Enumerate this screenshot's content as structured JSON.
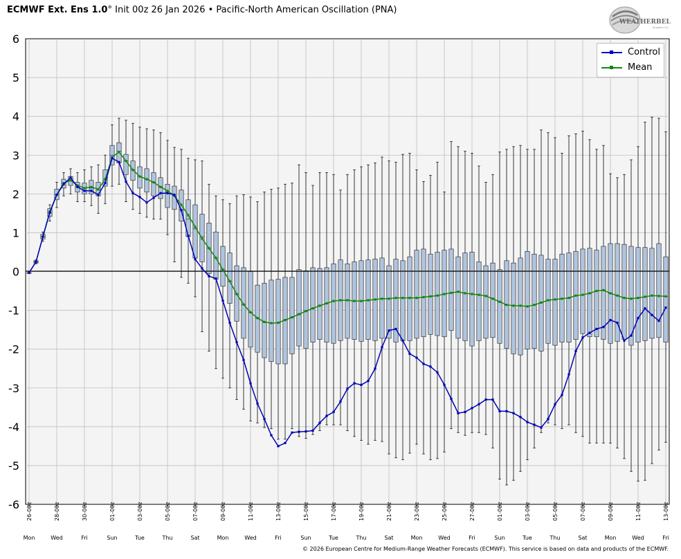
{
  "header": {
    "model": "ECMWF Ext.  Ens 1.0",
    "degree_symbol": "°",
    "init": " Init 00z 26 Jan 2026",
    "separator": " • ",
    "index_name": "Pacific-North American Oscillation (PNA)"
  },
  "logo": {
    "text": "WEATHERBELL",
    "subtext": "Analytics LLC"
  },
  "copyright": "© 2026 European Centre for Medium-Range Weather Forecasts (ECMWF). This service is based on data and products of the ECMWF.",
  "colors": {
    "control": "#0000bb",
    "mean": "#118811",
    "box_fill": "#b0c4de",
    "plot_bg": "#f4f4f4",
    "grid": "#bfbfbf"
  },
  "legend": {
    "control_label": "Control",
    "mean_label": "Mean",
    "position": "top-right"
  },
  "chart_data": {
    "type": "box-line",
    "title": "Pacific-North American Oscillation (PNA)",
    "ylim": [
      -6,
      6
    ],
    "y_ticks": [
      6,
      5,
      4,
      3,
      2,
      1,
      0,
      -1,
      -2,
      -3,
      -4,
      -5,
      -6
    ],
    "x_step_hours": 12,
    "n_steps": 93,
    "date_labels": [
      {
        "step": 0,
        "date": "26-00z",
        "day": "Mon"
      },
      {
        "step": 4,
        "date": "28-00z",
        "day": "Wed"
      },
      {
        "step": 8,
        "date": "30-00z",
        "day": "Fri"
      },
      {
        "step": 12,
        "date": "01-00z",
        "day": "Sun"
      },
      {
        "step": 16,
        "date": "03-00z",
        "day": "Tue"
      },
      {
        "step": 20,
        "date": "05-00z",
        "day": "Thu"
      },
      {
        "step": 24,
        "date": "07-00z",
        "day": "Sat"
      },
      {
        "step": 28,
        "date": "09-00z",
        "day": "Mon"
      },
      {
        "step": 32,
        "date": "11-00z",
        "day": "Wed"
      },
      {
        "step": 36,
        "date": "13-00z",
        "day": "Fri"
      },
      {
        "step": 40,
        "date": "15-00z",
        "day": "Sun"
      },
      {
        "step": 44,
        "date": "17-00z",
        "day": "Tue"
      },
      {
        "step": 48,
        "date": "19-00z",
        "day": "Thu"
      },
      {
        "step": 52,
        "date": "21-00z",
        "day": "Sat"
      },
      {
        "step": 56,
        "date": "23-00z",
        "day": "Mon"
      },
      {
        "step": 60,
        "date": "25-00z",
        "day": "Wed"
      },
      {
        "step": 64,
        "date": "27-00z",
        "day": "Fri"
      },
      {
        "step": 68,
        "date": "01-00z",
        "day": "Sun"
      },
      {
        "step": 72,
        "date": "03-00z",
        "day": "Tue"
      },
      {
        "step": 76,
        "date": "05-00z",
        "day": "Thu"
      },
      {
        "step": 80,
        "date": "07-00z",
        "day": "Sat"
      },
      {
        "step": 84,
        "date": "09-00z",
        "day": "Mon"
      },
      {
        "step": 88,
        "date": "11-00z",
        "day": "Wed"
      },
      {
        "step": 92,
        "date": "13-00z",
        "day": "Fri"
      }
    ],
    "series": [
      {
        "name": "Control",
        "values": [
          -0.03,
          0.25,
          0.9,
          1.52,
          1.98,
          2.25,
          2.42,
          2.18,
          2.08,
          2.08,
          1.98,
          2.28,
          2.92,
          2.82,
          2.32,
          2.02,
          1.92,
          1.78,
          1.9,
          2.02,
          2.02,
          1.98,
          1.58,
          0.92,
          0.32,
          0.08,
          -0.12,
          -0.18,
          -0.75,
          -1.32,
          -1.82,
          -2.28,
          -2.88,
          -3.4,
          -3.8,
          -4.22,
          -4.5,
          -4.42,
          -4.15,
          -4.13,
          -4.12,
          -4.1,
          -3.9,
          -3.72,
          -3.62,
          -3.35,
          -3.02,
          -2.88,
          -2.92,
          -2.82,
          -2.5,
          -1.95,
          -1.52,
          -1.48,
          -1.78,
          -2.12,
          -2.22,
          -2.38,
          -2.45,
          -2.6,
          -2.92,
          -3.28,
          -3.65,
          -3.62,
          -3.52,
          -3.42,
          -3.3,
          -3.3,
          -3.6,
          -3.6,
          -3.65,
          -3.75,
          -3.88,
          -3.95,
          -4.02,
          -3.8,
          -3.42,
          -3.18,
          -2.65,
          -2.05,
          -1.7,
          -1.58,
          -1.48,
          -1.43,
          -1.25,
          -1.32,
          -1.78,
          -1.65,
          -1.2,
          -0.95,
          -1.12,
          -1.27,
          -0.93
        ]
      },
      {
        "name": "Mean",
        "values": [
          -0.03,
          0.25,
          0.9,
          1.55,
          1.98,
          2.28,
          2.35,
          2.22,
          2.15,
          2.18,
          2.12,
          2.38,
          2.95,
          3.08,
          2.85,
          2.62,
          2.45,
          2.38,
          2.3,
          2.18,
          2.08,
          1.95,
          1.72,
          1.45,
          1.15,
          0.85,
          0.6,
          0.35,
          0.05,
          -0.25,
          -0.58,
          -0.85,
          -1.05,
          -1.2,
          -1.3,
          -1.33,
          -1.32,
          -1.25,
          -1.18,
          -1.1,
          -1.02,
          -0.95,
          -0.88,
          -0.82,
          -0.76,
          -0.74,
          -0.74,
          -0.76,
          -0.76,
          -0.74,
          -0.72,
          -0.7,
          -0.7,
          -0.68,
          -0.68,
          -0.68,
          -0.68,
          -0.66,
          -0.64,
          -0.62,
          -0.58,
          -0.55,
          -0.52,
          -0.56,
          -0.58,
          -0.6,
          -0.63,
          -0.7,
          -0.78,
          -0.86,
          -0.88,
          -0.88,
          -0.9,
          -0.86,
          -0.8,
          -0.74,
          -0.72,
          -0.7,
          -0.68,
          -0.62,
          -0.6,
          -0.56,
          -0.5,
          -0.48,
          -0.56,
          -0.62,
          -0.68,
          -0.7,
          -0.68,
          -0.65,
          -0.62,
          -0.63,
          -0.64
        ]
      }
    ],
    "ensemble_boxes": [
      [
        -0.03,
        -0.03,
        -0.03,
        -0.03,
        -0.03
      ],
      [
        0.2,
        0.22,
        0.25,
        0.28,
        0.3
      ],
      [
        0.78,
        0.84,
        0.9,
        0.96,
        1.02
      ],
      [
        1.3,
        1.42,
        1.52,
        1.62,
        1.72
      ],
      [
        1.65,
        1.85,
        1.98,
        2.12,
        2.3
      ],
      [
        1.95,
        2.15,
        2.28,
        2.38,
        2.55
      ],
      [
        2.0,
        2.22,
        2.35,
        2.45,
        2.65
      ],
      [
        1.8,
        2.05,
        2.18,
        2.3,
        2.55
      ],
      [
        1.8,
        2.0,
        2.15,
        2.28,
        2.62
      ],
      [
        1.7,
        2.0,
        2.15,
        2.35,
        2.7
      ],
      [
        1.5,
        1.95,
        2.1,
        2.3,
        2.75
      ],
      [
        1.75,
        2.2,
        2.38,
        2.62,
        3.0
      ],
      [
        2.2,
        2.75,
        3.0,
        3.25,
        3.78
      ],
      [
        2.25,
        2.8,
        3.1,
        3.32,
        3.95
      ],
      [
        1.8,
        2.5,
        2.85,
        3.02,
        3.9
      ],
      [
        1.6,
        2.35,
        2.62,
        2.85,
        3.82
      ],
      [
        1.5,
        2.15,
        2.45,
        2.7,
        3.72
      ],
      [
        1.4,
        2.05,
        2.38,
        2.65,
        3.68
      ],
      [
        1.35,
        1.95,
        2.3,
        2.55,
        3.65
      ],
      [
        1.35,
        1.88,
        2.18,
        2.42,
        3.58
      ],
      [
        0.95,
        1.65,
        2.05,
        2.25,
        3.38
      ],
      [
        0.25,
        1.6,
        1.95,
        2.2,
        3.2
      ],
      [
        -0.15,
        1.3,
        1.6,
        2.1,
        3.15
      ],
      [
        -0.3,
        0.9,
        1.35,
        1.85,
        2.92
      ],
      [
        -0.65,
        0.35,
        1.1,
        1.72,
        2.88
      ],
      [
        -1.55,
        0.25,
        0.9,
        1.48,
        2.85
      ],
      [
        -2.05,
        -0.05,
        0.6,
        1.25,
        2.25
      ],
      [
        -2.5,
        -0.2,
        0.35,
        1.02,
        1.95
      ],
      [
        -2.75,
        -0.38,
        0.05,
        0.65,
        1.85
      ],
      [
        -3.0,
        -0.82,
        -0.25,
        0.48,
        1.75
      ],
      [
        -3.3,
        -1.28,
        -0.58,
        0.15,
        1.95
      ],
      [
        -3.55,
        -1.72,
        -0.85,
        0.1,
        1.98
      ],
      [
        -3.85,
        -1.95,
        -1.05,
        0.0,
        1.92
      ],
      [
        -3.9,
        -2.08,
        -1.2,
        -0.35,
        1.8
      ],
      [
        -4.02,
        -2.22,
        -1.3,
        -0.3,
        2.05
      ],
      [
        -4.05,
        -2.32,
        -1.33,
        -0.22,
        2.12
      ],
      [
        -4.32,
        -2.38,
        -1.32,
        -0.2,
        2.15
      ],
      [
        -4.32,
        -2.38,
        -1.25,
        -0.15,
        2.25
      ],
      [
        -4.05,
        -2.12,
        -1.18,
        -0.15,
        2.28
      ],
      [
        -4.25,
        -1.92,
        -1.1,
        0.05,
        2.75
      ],
      [
        -4.3,
        -1.98,
        -1.02,
        0.02,
        2.55
      ],
      [
        -4.2,
        -1.82,
        -0.95,
        0.1,
        2.22
      ],
      [
        -4.1,
        -1.75,
        -0.88,
        0.08,
        2.55
      ],
      [
        -3.95,
        -1.82,
        -0.82,
        0.1,
        2.55
      ],
      [
        -3.95,
        -1.85,
        -0.76,
        0.2,
        2.5
      ],
      [
        -3.95,
        -1.78,
        -0.74,
        0.3,
        2.1
      ],
      [
        -4.1,
        -1.72,
        -0.74,
        0.2,
        2.5
      ],
      [
        -4.25,
        -1.75,
        -0.76,
        0.25,
        2.62
      ],
      [
        -4.35,
        -1.8,
        -0.76,
        0.28,
        2.7
      ],
      [
        -4.45,
        -1.75,
        -0.74,
        0.3,
        2.75
      ],
      [
        -4.35,
        -1.78,
        -0.72,
        0.32,
        2.8
      ],
      [
        -4.38,
        -1.72,
        -0.7,
        0.35,
        2.95
      ],
      [
        -4.7,
        -1.72,
        -0.7,
        0.15,
        2.85
      ],
      [
        -4.8,
        -1.82,
        -0.68,
        0.32,
        2.82
      ],
      [
        -4.85,
        -1.78,
        -0.68,
        0.28,
        3.02
      ],
      [
        -4.68,
        -1.78,
        -0.68,
        0.38,
        3.05
      ],
      [
        -4.45,
        -1.72,
        -0.68,
        0.55,
        2.62
      ],
      [
        -4.7,
        -1.68,
        -0.66,
        0.58,
        2.32
      ],
      [
        -4.85,
        -1.62,
        -0.64,
        0.45,
        2.48
      ],
      [
        -4.82,
        -1.65,
        -0.62,
        0.5,
        2.82
      ],
      [
        -4.65,
        -1.68,
        -0.58,
        0.55,
        2.05
      ],
      [
        -4.05,
        -1.52,
        -0.55,
        0.58,
        3.35
      ],
      [
        -4.15,
        -1.72,
        -0.52,
        0.38,
        3.22
      ],
      [
        -4.22,
        -1.78,
        -0.56,
        0.48,
        3.1
      ],
      [
        -4.15,
        -1.92,
        -0.58,
        0.5,
        3.05
      ],
      [
        -4.15,
        -1.78,
        -0.6,
        0.25,
        2.72
      ],
      [
        -4.2,
        -1.72,
        -0.63,
        0.15,
        2.3
      ],
      [
        -4.55,
        -1.7,
        -0.7,
        0.22,
        2.5
      ],
      [
        -5.35,
        -1.85,
        -0.78,
        0.05,
        3.08
      ],
      [
        -5.5,
        -1.98,
        -0.86,
        0.28,
        3.15
      ],
      [
        -5.38,
        -2.12,
        -0.88,
        0.22,
        3.22
      ],
      [
        -5.15,
        -2.15,
        -0.88,
        0.35,
        3.25
      ],
      [
        -4.85,
        -2.0,
        -0.9,
        0.52,
        3.15
      ],
      [
        -4.55,
        -1.98,
        -0.86,
        0.45,
        3.15
      ],
      [
        -4.15,
        -2.05,
        -0.8,
        0.42,
        3.65
      ],
      [
        -3.9,
        -1.85,
        -0.74,
        0.32,
        3.58
      ],
      [
        -3.95,
        -1.9,
        -0.72,
        0.32,
        3.45
      ],
      [
        -4.05,
        -1.82,
        -0.7,
        0.45,
        3.05
      ],
      [
        -3.95,
        -1.82,
        -0.68,
        0.48,
        3.5
      ],
      [
        -4.15,
        -1.75,
        -0.62,
        0.52,
        3.55
      ],
      [
        -4.25,
        -1.6,
        -0.6,
        0.58,
        3.62
      ],
      [
        -4.42,
        -1.68,
        -0.56,
        0.6,
        3.4
      ],
      [
        -4.42,
        -1.68,
        -0.5,
        0.55,
        3.15
      ],
      [
        -4.42,
        -1.75,
        -0.48,
        0.65,
        3.25
      ],
      [
        -4.42,
        -1.85,
        -0.56,
        0.72,
        2.52
      ],
      [
        -4.55,
        -1.8,
        -0.62,
        0.72,
        2.42
      ],
      [
        -4.82,
        -1.75,
        -0.68,
        0.7,
        2.5
      ],
      [
        -5.15,
        -1.9,
        -0.7,
        0.65,
        2.88
      ],
      [
        -5.4,
        -1.82,
        -0.68,
        0.62,
        3.22
      ],
      [
        -5.38,
        -1.78,
        -0.65,
        0.62,
        3.85
      ],
      [
        -4.95,
        -1.72,
        -0.62,
        0.6,
        3.98
      ],
      [
        -4.6,
        -1.7,
        -0.63,
        0.72,
        3.95
      ],
      [
        -4.4,
        -1.82,
        -0.64,
        0.38,
        3.6
      ]
    ]
  }
}
